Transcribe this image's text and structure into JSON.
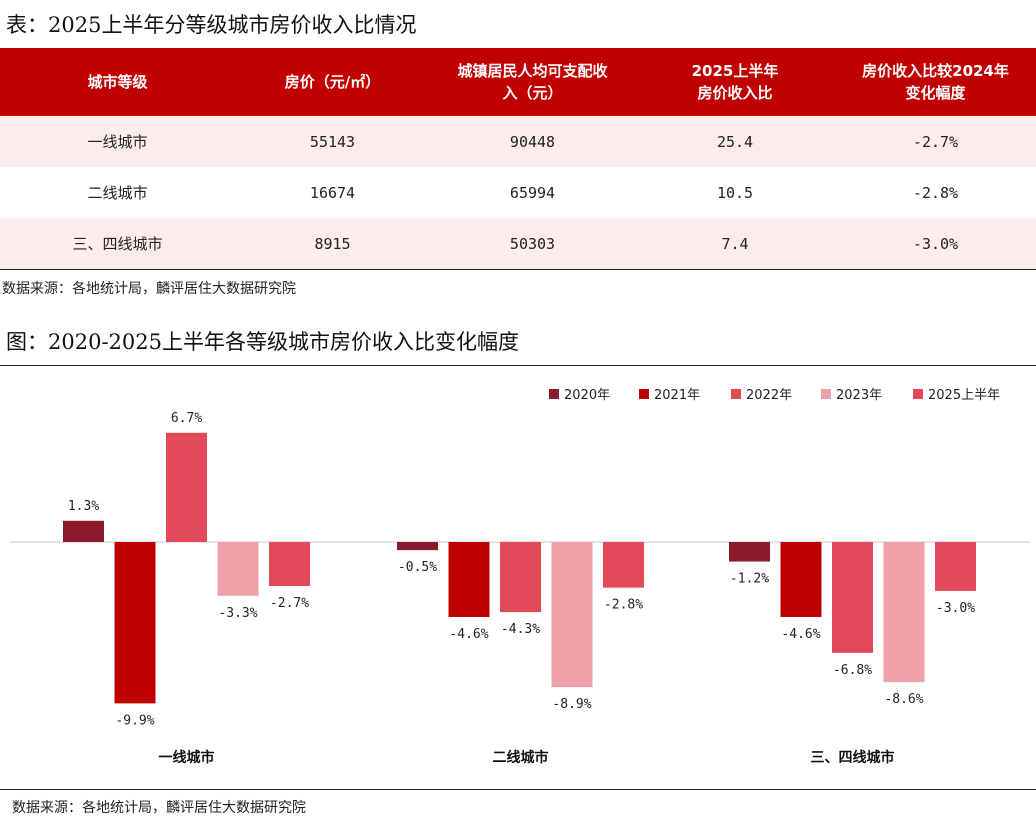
{
  "table_title": "表：2025上半年分等级城市房价收入比情况",
  "table": {
    "headers": [
      {
        "line1": "城市等级",
        "line2": ""
      },
      {
        "line1": "房价（元/㎡）",
        "line2": ""
      },
      {
        "line1": "城镇居民人均可支配收",
        "line2": "入（元）"
      },
      {
        "line1": "2025上半年",
        "line2": "房价收入比"
      },
      {
        "line1": "房价收入比较2024年",
        "line2": "变化幅度"
      }
    ],
    "rows": [
      {
        "tier": "一线城市",
        "price": "55143",
        "income": "90448",
        "ratio": "25.4",
        "change": "-2.7%"
      },
      {
        "tier": "二线城市",
        "price": "16674",
        "income": "65994",
        "ratio": "10.5",
        "change": "-2.8%"
      },
      {
        "tier": "三、四线城市",
        "price": "8915",
        "income": "50303",
        "ratio": "7.4",
        "change": "-3.0%"
      }
    ]
  },
  "table_source": "数据来源：各地统计局，麟评居住大数据研究院",
  "chart_title": "图：2020-2025上半年各等级城市房价收入比变化幅度",
  "chart_source": "数据来源：各地统计局，麟评居住大数据研究院",
  "colors": {
    "header_bg": "#c00000",
    "row_alt_bg": "#fdecec",
    "series": [
      "#8b1a2b",
      "#c00000",
      "#e24a5a",
      "#f0a0a8",
      "#e24a5a"
    ]
  },
  "chart_data": {
    "type": "bar",
    "categories": [
      "一线城市",
      "二线城市",
      "三、四线城市"
    ],
    "series": [
      {
        "name": "2020年",
        "values": [
          1.3,
          -0.5,
          -1.2
        ],
        "labels": [
          "1.3%",
          "-0.5%",
          "-1.2%"
        ]
      },
      {
        "name": "2021年",
        "values": [
          -9.9,
          -4.6,
          -4.6
        ],
        "labels": [
          "-9.9%",
          "-4.6%",
          "-4.6%"
        ]
      },
      {
        "name": "2022年",
        "values": [
          6.7,
          -4.3,
          -6.8
        ],
        "labels": [
          "6.7%",
          "-4.3%",
          "-6.8%"
        ]
      },
      {
        "name": "2023年",
        "values": [
          -3.3,
          -8.9,
          -8.6
        ],
        "labels": [
          "-3.3%",
          "-8.9%",
          "-8.6%"
        ]
      },
      {
        "name": "2025上半年",
        "values": [
          -2.7,
          -2.8,
          -3.0
        ],
        "labels": [
          "-2.7%",
          "-2.8%",
          "-3.0%"
        ]
      }
    ],
    "ylim": [
      -11,
      8
    ],
    "legend_position": "top-right",
    "grid": false
  }
}
